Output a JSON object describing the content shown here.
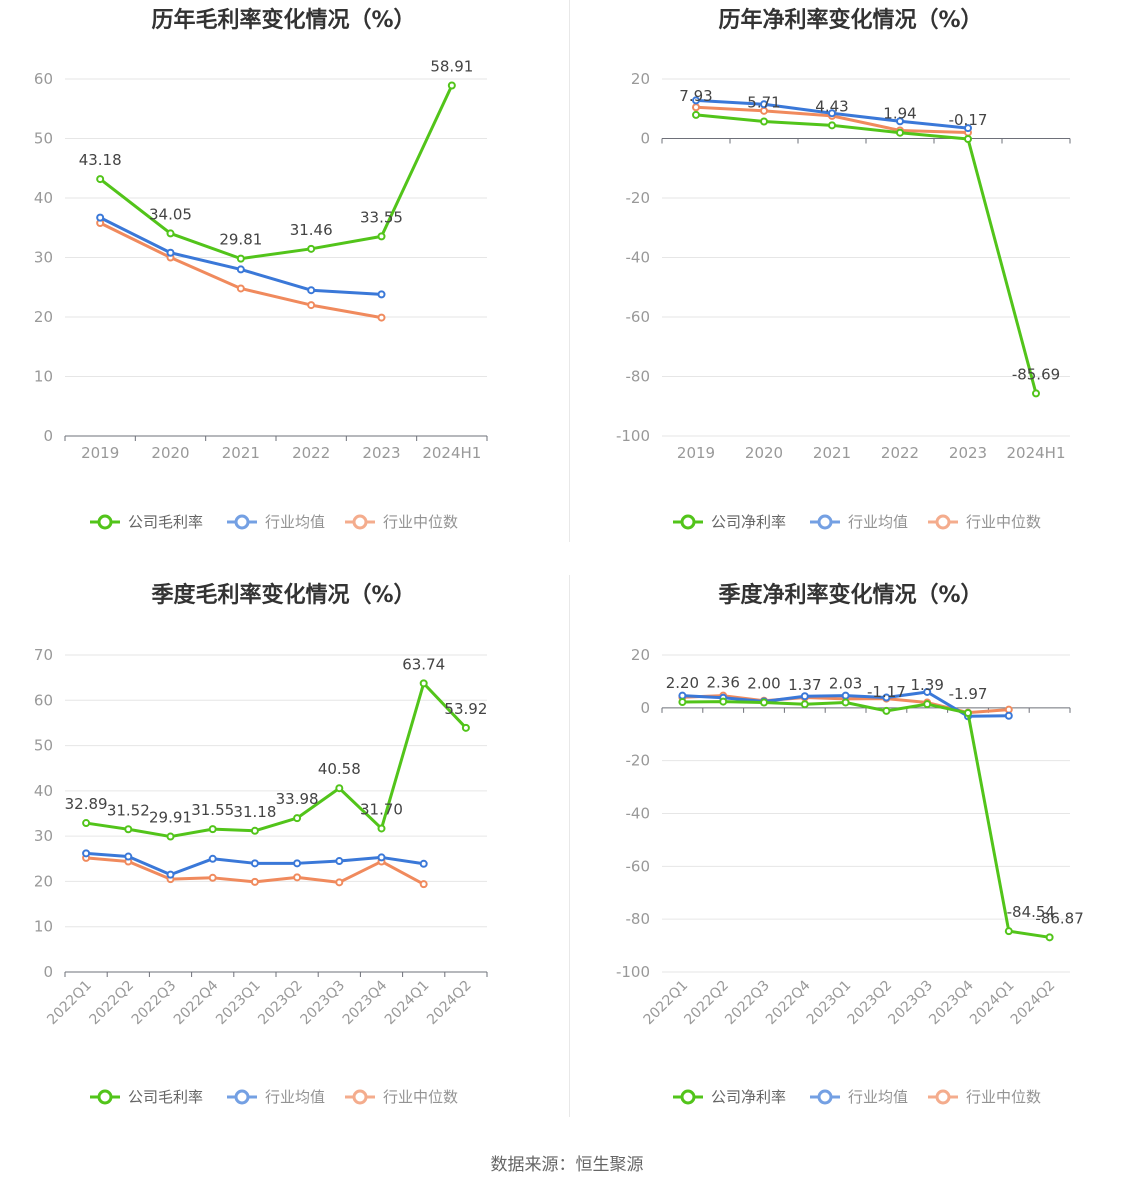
{
  "source_text": "数据来源：恒生聚源",
  "series_colors": {
    "company": "#52c41a",
    "avg": "#3a78d8",
    "median": "#f08a5d"
  },
  "chart_data": [
    {
      "type": "line",
      "title": "历年毛利率变化情况（%）",
      "categories": [
        "2019",
        "2020",
        "2021",
        "2022",
        "2023",
        "2024H1"
      ],
      "ylim": [
        0,
        60
      ],
      "yticks": [
        0,
        10,
        20,
        30,
        40,
        50,
        60
      ],
      "legend_position": "bottom",
      "grid": true,
      "series": [
        {
          "name": "公司毛利率",
          "key": "company",
          "values": [
            43.18,
            34.05,
            29.81,
            31.46,
            33.55,
            58.91
          ],
          "labels": [
            "43.18",
            "34.05",
            "29.81",
            "31.46",
            "33.55",
            "58.91"
          ]
        },
        {
          "name": "行业均值",
          "key": "avg",
          "values": [
            36.7,
            30.8,
            28.0,
            24.5,
            23.8,
            null
          ]
        },
        {
          "name": "行业中位数",
          "key": "median",
          "values": [
            35.8,
            30.0,
            24.8,
            22.0,
            19.9,
            null
          ]
        }
      ]
    },
    {
      "type": "line",
      "title": "历年净利率变化情况（%）",
      "categories": [
        "2019",
        "2020",
        "2021",
        "2022",
        "2023",
        "2024H1"
      ],
      "ylim": [
        -100,
        20
      ],
      "yticks": [
        -100,
        -80,
        -60,
        -40,
        -20,
        0,
        20
      ],
      "legend_position": "bottom",
      "grid": true,
      "series": [
        {
          "name": "公司净利率",
          "key": "company",
          "values": [
            7.93,
            5.71,
            4.43,
            1.94,
            -0.17,
            -85.69
          ],
          "labels": [
            "7.93",
            "5.71",
            "4.43",
            "1.94",
            "-0.17",
            "-85.69"
          ]
        },
        {
          "name": "行业均值",
          "key": "avg",
          "values": [
            12.8,
            11.5,
            8.5,
            5.8,
            3.5,
            null
          ]
        },
        {
          "name": "行业中位数",
          "key": "median",
          "values": [
            10.5,
            9.3,
            7.6,
            2.7,
            2.0,
            null
          ]
        }
      ]
    },
    {
      "type": "line",
      "title": "季度毛利率变化情况（%）",
      "categories": [
        "2022Q1",
        "2022Q2",
        "2022Q3",
        "2022Q4",
        "2023Q1",
        "2023Q2",
        "2023Q3",
        "2023Q4",
        "2024Q1",
        "2024Q2"
      ],
      "ylim": [
        0,
        70
      ],
      "yticks": [
        0,
        10,
        20,
        30,
        40,
        50,
        60,
        70
      ],
      "legend_position": "bottom",
      "grid": true,
      "series": [
        {
          "name": "公司毛利率",
          "key": "company",
          "values": [
            32.89,
            31.52,
            29.91,
            31.55,
            31.18,
            33.98,
            40.58,
            31.7,
            63.74,
            53.92
          ],
          "labels": [
            "32.89",
            "31.52",
            "29.91",
            "31.55",
            "31.18",
            "33.98",
            "40.58",
            "31.70",
            "63.74",
            "53.92"
          ]
        },
        {
          "name": "行业均值",
          "key": "avg",
          "values": [
            26.2,
            25.5,
            21.5,
            25.0,
            24.0,
            24.0,
            24.5,
            25.3,
            23.9,
            null
          ]
        },
        {
          "name": "行业中位数",
          "key": "median",
          "values": [
            25.2,
            24.4,
            20.5,
            20.8,
            19.9,
            20.9,
            19.8,
            24.4,
            19.4,
            null
          ]
        }
      ]
    },
    {
      "type": "line",
      "title": "季度净利率变化情况（%）",
      "categories": [
        "2022Q1",
        "2022Q2",
        "2022Q3",
        "2022Q4",
        "2023Q1",
        "2023Q2",
        "2023Q3",
        "2023Q4",
        "2024Q1",
        "2024Q2"
      ],
      "ylim": [
        -100,
        20
      ],
      "yticks": [
        -100,
        -80,
        -60,
        -40,
        -20,
        0,
        20
      ],
      "legend_position": "bottom",
      "grid": true,
      "series": [
        {
          "name": "公司净利率",
          "key": "company",
          "values": [
            2.2,
            2.36,
            2.0,
            1.37,
            2.03,
            -1.17,
            1.39,
            -1.97,
            -84.54,
            -86.87
          ],
          "labels": [
            "2.20",
            "2.36",
            "2.00",
            "1.37",
            "2.03",
            "-1.17",
            "1.39",
            "-1.97",
            "-84.54",
            "-86.87"
          ]
        },
        {
          "name": "行业均值",
          "key": "avg",
          "values": [
            4.6,
            3.8,
            2.4,
            4.4,
            4.6,
            3.9,
            6.0,
            -3.2,
            -3.0,
            null
          ]
        },
        {
          "name": "行业中位数",
          "key": "median",
          "values": [
            4.0,
            4.6,
            2.7,
            3.9,
            3.4,
            3.5,
            2.0,
            -1.8,
            -0.7,
            null
          ]
        }
      ]
    }
  ]
}
